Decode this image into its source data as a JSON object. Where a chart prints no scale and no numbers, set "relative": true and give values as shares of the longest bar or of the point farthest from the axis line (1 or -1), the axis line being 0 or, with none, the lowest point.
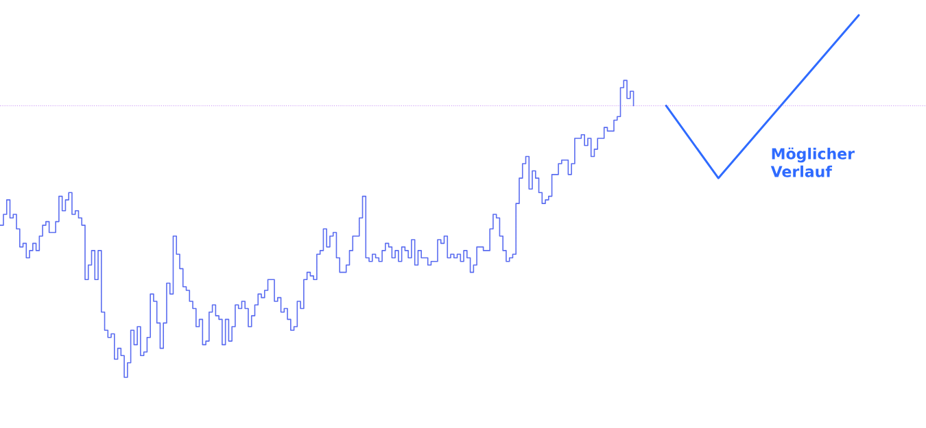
{
  "chart_data": {
    "type": "step",
    "relative": true,
    "categories": [
      null,
      null,
      null,
      null,
      null,
      null,
      null,
      null,
      null,
      null,
      null,
      null,
      null,
      null,
      null,
      null,
      null,
      null,
      null,
      null,
      null,
      null,
      null,
      null,
      null,
      null,
      null,
      null,
      null,
      null,
      null,
      null,
      null,
      null,
      null,
      null,
      null,
      null,
      null,
      null,
      null,
      null,
      null,
      null,
      null,
      null,
      null,
      null,
      null,
      null,
      null,
      null,
      null,
      null,
      null,
      null,
      null,
      null,
      null,
      null,
      null,
      null,
      null,
      null,
      null,
      null,
      null,
      null,
      null,
      null,
      null,
      null,
      null,
      null,
      null,
      null,
      null,
      null,
      null,
      null,
      null,
      null,
      null,
      null,
      null,
      null,
      null,
      null,
      null,
      null,
      null,
      null,
      null,
      null,
      null,
      null,
      null,
      null,
      null,
      null,
      null,
      null,
      null,
      null,
      null,
      null,
      null,
      null,
      null,
      null,
      null,
      null,
      null,
      null,
      null,
      null,
      null,
      null,
      null,
      null,
      null,
      null,
      null,
      null,
      null,
      null,
      null,
      null,
      null,
      null,
      null,
      null,
      null,
      null,
      null,
      null,
      null,
      null,
      null,
      null,
      null,
      null,
      null,
      null,
      null,
      null,
      null,
      null,
      null,
      null,
      null,
      null,
      null,
      null,
      null,
      null,
      null,
      null,
      null,
      null,
      null,
      null,
      null,
      null,
      null,
      null,
      null,
      null,
      null,
      null,
      null,
      null,
      null,
      null,
      null,
      null,
      null,
      null,
      null,
      null,
      null,
      null,
      null,
      null,
      null,
      null,
      null,
      null,
      null,
      null,
      null,
      null,
      null,
      null,
      null,
      null,
      null,
      null,
      null,
      null,
      null,
      null,
      null,
      null,
      null,
      null,
      null,
      null,
      null,
      null,
      null,
      null,
      null,
      null,
      null,
      null,
      null,
      null,
      null,
      null,
      null,
      null,
      null,
      null,
      null,
      null,
      null,
      null,
      null,
      null,
      null,
      null,
      null,
      null,
      null,
      null,
      null,
      null,
      null,
      null,
      null,
      null,
      null,
      null,
      null,
      null,
      null,
      null,
      null,
      null,
      null,
      null,
      null,
      null,
      null,
      null,
      null,
      null,
      null,
      null,
      null,
      null,
      null,
      null
    ],
    "series": [
      {
        "color": "#5a6cf0",
        "values": [
          0.42,
          0.45,
          0.49,
          0.44,
          0.45,
          0.41,
          0.36,
          0.37,
          0.33,
          0.35,
          0.37,
          0.35,
          0.39,
          0.42,
          0.43,
          0.4,
          0.4,
          0.43,
          0.5,
          0.46,
          0.49,
          0.51,
          0.45,
          0.46,
          0.44,
          0.42,
          0.27,
          0.31,
          0.35,
          0.27,
          0.35,
          0.18,
          0.13,
          0.11,
          0.12,
          0.05,
          0.08,
          0.06,
          0.0,
          0.04,
          0.13,
          0.09,
          0.14,
          0.06,
          0.07,
          0.11,
          0.23,
          0.21,
          0.15,
          0.08,
          0.15,
          0.26,
          0.23,
          0.39,
          0.34,
          0.3,
          0.25,
          0.24,
          0.21,
          0.19,
          0.14,
          0.16,
          0.09,
          0.1,
          0.18,
          0.2,
          0.17,
          0.16,
          0.09,
          0.16,
          0.1,
          0.14,
          0.2,
          0.19,
          0.21,
          0.19,
          0.14,
          0.17,
          0.2,
          0.23,
          0.22,
          0.24,
          0.27,
          0.27,
          0.21,
          0.22,
          0.18,
          0.19,
          0.16,
          0.13,
          0.14,
          0.21,
          0.19,
          0.27,
          0.29,
          0.28,
          0.27,
          0.34,
          0.35,
          0.41,
          0.36,
          0.39,
          0.4,
          0.33,
          0.29,
          0.29,
          0.31,
          0.35,
          0.39,
          0.39,
          0.44,
          0.5,
          0.33,
          0.32,
          0.34,
          0.33,
          0.32,
          0.35,
          0.37,
          0.36,
          0.33,
          0.35,
          0.32,
          0.36,
          0.35,
          0.33,
          0.38,
          0.31,
          0.35,
          0.33,
          0.33,
          0.31,
          0.32,
          0.32,
          0.38,
          0.37,
          0.39,
          0.33,
          0.34,
          0.33,
          0.34,
          0.32,
          0.35,
          0.33,
          0.29,
          0.31,
          0.36,
          0.36,
          0.35,
          0.35,
          0.41,
          0.45,
          0.44,
          0.39,
          0.35,
          0.32,
          0.33,
          0.34,
          0.48,
          0.55,
          0.59,
          0.61,
          0.52,
          0.57,
          0.55,
          0.51,
          0.48,
          0.49,
          0.5,
          0.56,
          0.56,
          0.59,
          0.6,
          0.6,
          0.56,
          0.59,
          0.66,
          0.66,
          0.67,
          0.64,
          0.66,
          0.61,
          0.63,
          0.66,
          0.66,
          0.69,
          0.68,
          0.68,
          0.71,
          0.72,
          0.8,
          0.82,
          0.77,
          0.79,
          0.75,
          null,
          null,
          null,
          null,
          null,
          null,
          null,
          null,
          null,
          null,
          null,
          null,
          null,
          null,
          null,
          null,
          null,
          null,
          null,
          null,
          null,
          null,
          null,
          null,
          null,
          null,
          null,
          null,
          null,
          null,
          null,
          null,
          null,
          null,
          null,
          null,
          null,
          null,
          null,
          null,
          null,
          null,
          null,
          null,
          null,
          null,
          null,
          null,
          null,
          null,
          null,
          null,
          null,
          null,
          null,
          null,
          null,
          null,
          null,
          null,
          null,
          null,
          null,
          null,
          null,
          null,
          null,
          null,
          null
        ]
      },
      {
        "type": "line",
        "color": "#2f6bff",
        "values": [
          null,
          null,
          null,
          null,
          null,
          null,
          null,
          null,
          null,
          null,
          null,
          null,
          null,
          null,
          null,
          null,
          null,
          null,
          null,
          null,
          null,
          null,
          null,
          null,
          null,
          null,
          null,
          null,
          null,
          null,
          null,
          null,
          null,
          null,
          null,
          null,
          null,
          null,
          null,
          null,
          null,
          null,
          null,
          null,
          null,
          null,
          null,
          null,
          null,
          null,
          null,
          null,
          null,
          null,
          null,
          null,
          null,
          null,
          null,
          null,
          null,
          null,
          null,
          null,
          null,
          null,
          null,
          null,
          null,
          null,
          null,
          null,
          null,
          null,
          null,
          null,
          null,
          null,
          null,
          null,
          null,
          null,
          null,
          null,
          null,
          null,
          null,
          null,
          null,
          null,
          null,
          null,
          null,
          null,
          null,
          null,
          null,
          null,
          null,
          null,
          null,
          null,
          null,
          null,
          null,
          null,
          null,
          null,
          null,
          null,
          null,
          null,
          null,
          null,
          null,
          null,
          null,
          null,
          null,
          null,
          null,
          null,
          null,
          null,
          null,
          null,
          null,
          null,
          null,
          null,
          null,
          null,
          null,
          null,
          null,
          null,
          null,
          null,
          null,
          null,
          null,
          null,
          null,
          null,
          null,
          null,
          null,
          null,
          null,
          null,
          null,
          null,
          null,
          null,
          null,
          null,
          null,
          null,
          null,
          null,
          null,
          null,
          null,
          null,
          null,
          null,
          null,
          null,
          null,
          null,
          null,
          null,
          null,
          null,
          null,
          null,
          null,
          null,
          null,
          null,
          null,
          null,
          null,
          null,
          null,
          null,
          null,
          null,
          null,
          null,
          null,
          null,
          null,
          null,
          null,
          null,
          null,
          null,
          null,
          null,
          null,
          null,
          null,
          null,
          0.75,
          null,
          null,
          null,
          null,
          null,
          null,
          null,
          null,
          null,
          null,
          null,
          null,
          null,
          null,
          null,
          0.55,
          null,
          null,
          null,
          null,
          null,
          null,
          null,
          null,
          null,
          null,
          null,
          null,
          null,
          null,
          null,
          null,
          null,
          null,
          null,
          null,
          null,
          null,
          null,
          null,
          null,
          null,
          null,
          null,
          null,
          null,
          null,
          null,
          null,
          null,
          null,
          null,
          null,
          null,
          null,
          null,
          null,
          null,
          1.0
        ]
      }
    ],
    "ref_lines": [
      {
        "axis": "y",
        "value": 0.75,
        "color": "#a040f0",
        "line_style": "dotted"
      }
    ],
    "annotations": [
      "Möglicher Verlauf"
    ]
  }
}
